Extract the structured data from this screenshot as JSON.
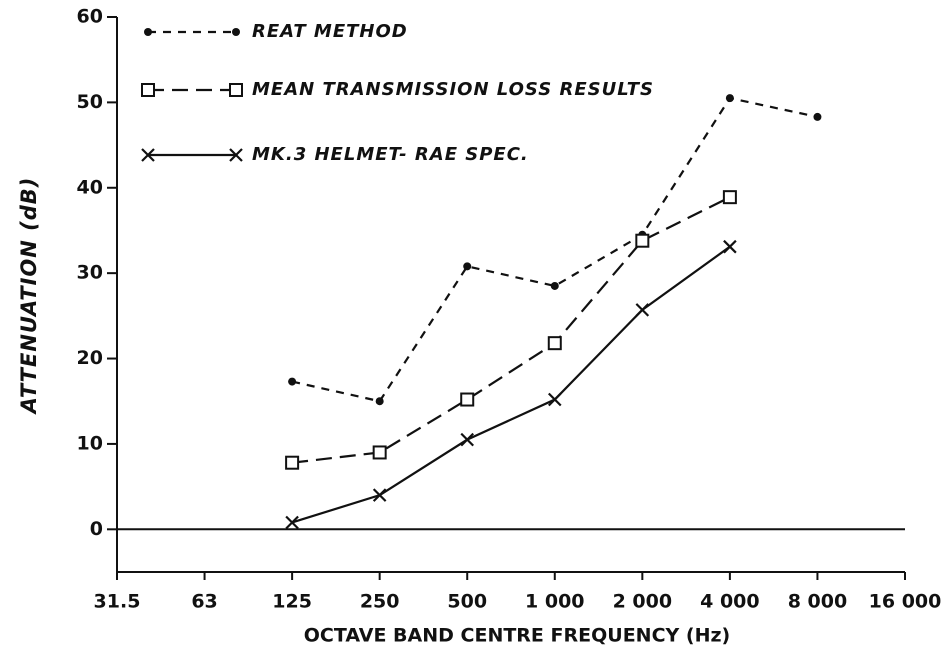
{
  "chart_data": {
    "type": "line",
    "x_label": "OCTAVE BAND CENTRE FREQUENCY (Hz)",
    "y_label": "ATTENUATION (dB)",
    "categories": [
      "31.5",
      "63",
      "125",
      "250",
      "500",
      "1 000",
      "2 000",
      "4 000",
      "8 000",
      "16 000"
    ],
    "ylim": [
      -5,
      60
    ],
    "yticks": [
      0,
      10,
      20,
      30,
      40,
      50,
      60
    ],
    "series": [
      {
        "name": "REAT METHOD",
        "color": "#111111",
        "marker": "dot",
        "dash": "short",
        "values": [
          null,
          null,
          17.3,
          15,
          30.8,
          28.5,
          34.5,
          50.5,
          48.3,
          null
        ]
      },
      {
        "name": "MEAN TRANSMISSION LOSS RESULTS",
        "color": "#111111",
        "marker": "square",
        "dash": "long",
        "values": [
          null,
          null,
          7.8,
          9,
          15.2,
          21.8,
          33.8,
          38.9,
          null,
          null
        ]
      },
      {
        "name": "MK.3 HELMET- RAE SPEC.",
        "color": "#111111",
        "marker": "x",
        "dash": "solid",
        "values": [
          null,
          null,
          0.8,
          4,
          10.5,
          15.2,
          25.7,
          33.1,
          null,
          null
        ]
      }
    ]
  }
}
